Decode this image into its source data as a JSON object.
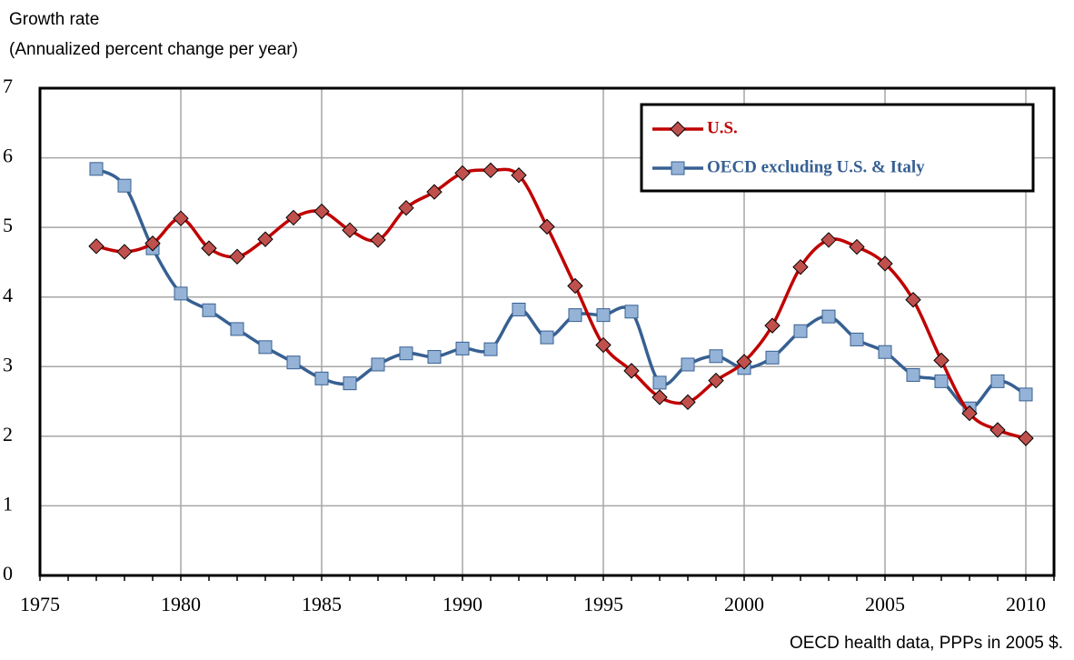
{
  "chart_data": {
    "type": "line",
    "title": "Growth rate",
    "subtitle": "(Annualized percent change per year)",
    "source": "OECD health data, PPPs in 2005 $.",
    "x": [
      1977,
      1978,
      1979,
      1980,
      1981,
      1982,
      1983,
      1984,
      1985,
      1986,
      1987,
      1988,
      1989,
      1990,
      1991,
      1992,
      1993,
      1994,
      1995,
      1996,
      1997,
      1998,
      1999,
      2000,
      2001,
      2002,
      2003,
      2004,
      2005,
      2006,
      2007,
      2008,
      2009,
      2010
    ],
    "series": [
      {
        "name": "U.S.",
        "color": "#c00000",
        "marker_color": "#c0504d",
        "marker": "diamond",
        "values": [
          4.73,
          4.65,
          4.77,
          5.13,
          4.7,
          4.58,
          4.83,
          5.14,
          5.23,
          4.96,
          4.82,
          5.28,
          5.51,
          5.78,
          5.82,
          5.75,
          5.01,
          4.16,
          3.31,
          2.94,
          2.56,
          2.49,
          2.8,
          3.07,
          3.59,
          4.43,
          4.82,
          4.72,
          4.48,
          3.96,
          3.09,
          2.33,
          2.09,
          1.97
        ]
      },
      {
        "name": "OECD excluding U.S. & Italy",
        "color": "#376092",
        "marker_color": "#95b3d7",
        "marker": "square",
        "values": [
          5.84,
          5.6,
          4.7,
          4.05,
          3.81,
          3.54,
          3.28,
          3.06,
          2.83,
          2.76,
          3.03,
          3.19,
          3.14,
          3.26,
          3.25,
          3.82,
          3.42,
          3.74,
          3.74,
          3.79,
          2.77,
          3.03,
          3.15,
          2.98,
          3.13,
          3.51,
          3.72,
          3.39,
          3.21,
          2.88,
          2.79,
          2.4,
          2.79,
          2.6
        ]
      }
    ],
    "xlim": [
      1975,
      2011
    ],
    "xticks": [
      1975,
      1980,
      1985,
      1990,
      1995,
      2000,
      2005,
      2010
    ],
    "ylim": [
      0,
      7
    ],
    "yticks": [
      0,
      1,
      2,
      3,
      4,
      5,
      6,
      7
    ],
    "grid": true,
    "smooth": true,
    "legend": "upper right"
  }
}
